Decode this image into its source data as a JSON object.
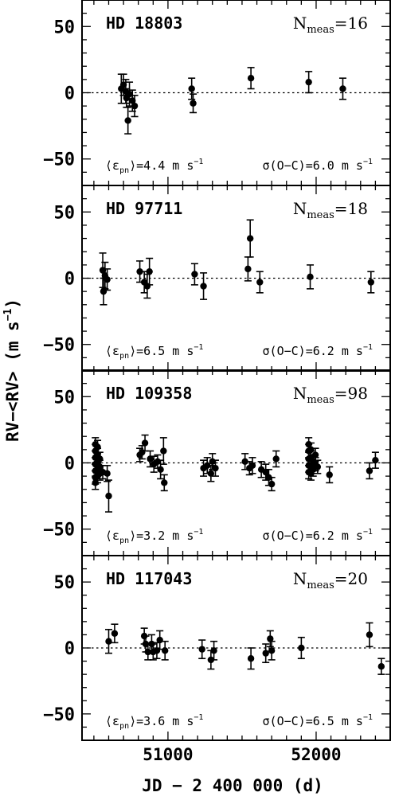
{
  "figure": {
    "ylabel": "RV−<RV> (m s",
    "ylabel_sup": "−1",
    "ylabel_close": ")",
    "xlabel": "JD − 2 400 000 (d)"
  },
  "chart_data": {
    "type": "scatter",
    "x_unit": "JD − 2 400 000 (d)",
    "y_unit": "m s-1",
    "xlim": [
      50420,
      52500
    ],
    "ylim": [
      -70,
      70
    ],
    "x_ticks": [
      51000,
      52000
    ],
    "y_ticks": [
      50,
      0,
      -50
    ],
    "zero_line": true,
    "panels": [
      {
        "star": "HD 18803",
        "n_meas": "16",
        "eps_pn": "4.4",
        "sigma_oc": "6.0",
        "points": [
          {
            "x": 50685,
            "y": 3,
            "err": 11
          },
          {
            "x": 50700,
            "y": 6,
            "err": 8
          },
          {
            "x": 50715,
            "y": 1,
            "err": 9
          },
          {
            "x": 50720,
            "y": -4,
            "err": 7
          },
          {
            "x": 50730,
            "y": -21,
            "err": 10
          },
          {
            "x": 50740,
            "y": -1,
            "err": 9
          },
          {
            "x": 50760,
            "y": -6,
            "err": 8
          },
          {
            "x": 50775,
            "y": -10,
            "err": 8
          },
          {
            "x": 51160,
            "y": 3,
            "err": 8
          },
          {
            "x": 51170,
            "y": -8,
            "err": 7
          },
          {
            "x": 51560,
            "y": 11,
            "err": 8
          },
          {
            "x": 51950,
            "y": 8,
            "err": 8
          },
          {
            "x": 52180,
            "y": 3,
            "err": 8
          }
        ]
      },
      {
        "star": "HD 97711",
        "n_meas": "18",
        "eps_pn": "6.5",
        "sigma_oc": "6.2",
        "points": [
          {
            "x": 50560,
            "y": 6,
            "err": 13
          },
          {
            "x": 50565,
            "y": -10,
            "err": 10
          },
          {
            "x": 50575,
            "y": 2,
            "err": 10
          },
          {
            "x": 50590,
            "y": -1,
            "err": 8
          },
          {
            "x": 50810,
            "y": 5,
            "err": 8
          },
          {
            "x": 50840,
            "y": -3,
            "err": 8
          },
          {
            "x": 50860,
            "y": -6,
            "err": 9
          },
          {
            "x": 50875,
            "y": 5,
            "err": 10
          },
          {
            "x": 51180,
            "y": 3,
            "err": 8
          },
          {
            "x": 51240,
            "y": -6,
            "err": 10
          },
          {
            "x": 51540,
            "y": 7,
            "err": 9
          },
          {
            "x": 51555,
            "y": 30,
            "err": 14
          },
          {
            "x": 51620,
            "y": -3,
            "err": 8
          },
          {
            "x": 51960,
            "y": 1,
            "err": 9
          },
          {
            "x": 52370,
            "y": -3,
            "err": 8
          }
        ]
      },
      {
        "star": "HD 109358",
        "n_meas": "98",
        "eps_pn": "3.2",
        "sigma_oc": "6.2",
        "points": [
          {
            "x": 50510,
            "y": 14,
            "err": 5
          },
          {
            "x": 50510,
            "y": 9,
            "err": 5
          },
          {
            "x": 50510,
            "y": 4,
            "err": 5
          },
          {
            "x": 50510,
            "y": -1,
            "err": 5
          },
          {
            "x": 50510,
            "y": -6,
            "err": 5
          },
          {
            "x": 50510,
            "y": -11,
            "err": 5
          },
          {
            "x": 50510,
            "y": -15,
            "err": 5
          },
          {
            "x": 50525,
            "y": 12,
            "err": 5
          },
          {
            "x": 50525,
            "y": 6,
            "err": 5
          },
          {
            "x": 50525,
            "y": 0,
            "err": 5
          },
          {
            "x": 50525,
            "y": -5,
            "err": 5
          },
          {
            "x": 50525,
            "y": -10,
            "err": 5
          },
          {
            "x": 50540,
            "y": 3,
            "err": 5
          },
          {
            "x": 50540,
            "y": -3,
            "err": 5
          },
          {
            "x": 50540,
            "y": -8,
            "err": 5
          },
          {
            "x": 50560,
            "y": -7,
            "err": 5
          },
          {
            "x": 50590,
            "y": -8,
            "err": 6
          },
          {
            "x": 50600,
            "y": -25,
            "err": 12
          },
          {
            "x": 50810,
            "y": 6,
            "err": 5
          },
          {
            "x": 50825,
            "y": 8,
            "err": 5
          },
          {
            "x": 50845,
            "y": 15,
            "err": 6
          },
          {
            "x": 50880,
            "y": 3,
            "err": 6
          },
          {
            "x": 50905,
            "y": -1,
            "err": 6
          },
          {
            "x": 50930,
            "y": 1,
            "err": 5
          },
          {
            "x": 50950,
            "y": -5,
            "err": 7
          },
          {
            "x": 50970,
            "y": 9,
            "err": 10
          },
          {
            "x": 50975,
            "y": -15,
            "err": 6
          },
          {
            "x": 51240,
            "y": -4,
            "err": 6
          },
          {
            "x": 51265,
            "y": -2,
            "err": 6
          },
          {
            "x": 51290,
            "y": -8,
            "err": 6
          },
          {
            "x": 51300,
            "y": 1,
            "err": 6
          },
          {
            "x": 51320,
            "y": -4,
            "err": 6
          },
          {
            "x": 51520,
            "y": 1,
            "err": 6
          },
          {
            "x": 51550,
            "y": -4,
            "err": 5
          },
          {
            "x": 51570,
            "y": -2,
            "err": 6
          },
          {
            "x": 51630,
            "y": -5,
            "err": 6
          },
          {
            "x": 51660,
            "y": -7,
            "err": 6
          },
          {
            "x": 51680,
            "y": -11,
            "err": 6
          },
          {
            "x": 51700,
            "y": -16,
            "err": 5
          },
          {
            "x": 51730,
            "y": 3,
            "err": 6
          },
          {
            "x": 51950,
            "y": 14,
            "err": 5
          },
          {
            "x": 51950,
            "y": 9,
            "err": 5
          },
          {
            "x": 51950,
            "y": 3,
            "err": 5
          },
          {
            "x": 51950,
            "y": -2,
            "err": 5
          },
          {
            "x": 51950,
            "y": -7,
            "err": 5
          },
          {
            "x": 51965,
            "y": 10,
            "err": 5
          },
          {
            "x": 51965,
            "y": 4,
            "err": 5
          },
          {
            "x": 51965,
            "y": -3,
            "err": 5
          },
          {
            "x": 51965,
            "y": -8,
            "err": 5
          },
          {
            "x": 51980,
            "y": 1,
            "err": 5
          },
          {
            "x": 51980,
            "y": -5,
            "err": 5
          },
          {
            "x": 51995,
            "y": 6,
            "err": 5
          },
          {
            "x": 51995,
            "y": -1,
            "err": 5
          },
          {
            "x": 52010,
            "y": -3,
            "err": 5
          },
          {
            "x": 52090,
            "y": -9,
            "err": 6
          },
          {
            "x": 52360,
            "y": -6,
            "err": 6
          },
          {
            "x": 52400,
            "y": 2,
            "err": 6
          }
        ]
      },
      {
        "star": "HD 117043",
        "n_meas": "20",
        "eps_pn": "3.6",
        "sigma_oc": "6.5",
        "points": [
          {
            "x": 50600,
            "y": 5,
            "err": 9
          },
          {
            "x": 50640,
            "y": 11,
            "err": 7
          },
          {
            "x": 50840,
            "y": 9,
            "err": 6
          },
          {
            "x": 50850,
            "y": 3,
            "err": 6
          },
          {
            "x": 50865,
            "y": -3,
            "err": 6
          },
          {
            "x": 50890,
            "y": 3,
            "err": 7
          },
          {
            "x": 50900,
            "y": -3,
            "err": 6
          },
          {
            "x": 50925,
            "y": -2,
            "err": 6
          },
          {
            "x": 50945,
            "y": 6,
            "err": 7
          },
          {
            "x": 50980,
            "y": -2,
            "err": 7
          },
          {
            "x": 51230,
            "y": -1,
            "err": 7
          },
          {
            "x": 51290,
            "y": -9,
            "err": 7
          },
          {
            "x": 51310,
            "y": -2,
            "err": 7
          },
          {
            "x": 51560,
            "y": -8,
            "err": 8
          },
          {
            "x": 51660,
            "y": -4,
            "err": 7
          },
          {
            "x": 51690,
            "y": 7,
            "err": 6
          },
          {
            "x": 51700,
            "y": -2,
            "err": 7
          },
          {
            "x": 51900,
            "y": 0,
            "err": 8
          },
          {
            "x": 52360,
            "y": 10,
            "err": 9
          },
          {
            "x": 52440,
            "y": -14,
            "err": 6
          }
        ]
      }
    ]
  }
}
